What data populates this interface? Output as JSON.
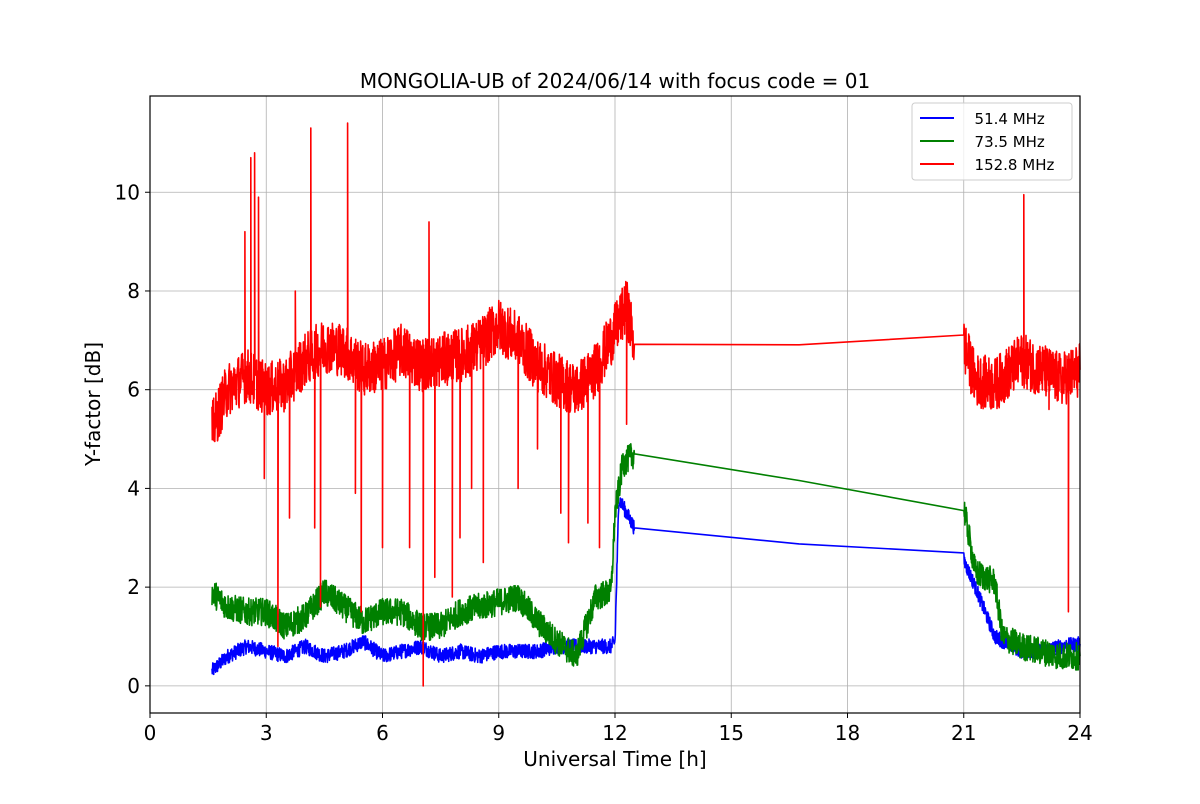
{
  "chart_data": {
    "type": "line",
    "title": "MONGOLIA-UB of 2024/06/14 with focus code = 01",
    "xlabel": "Universal Time [h]",
    "ylabel": "Y-factor [dB]",
    "xlim": [
      0,
      24
    ],
    "ylim": [
      -0.55,
      11.95
    ],
    "xticks": [
      0,
      3,
      6,
      9,
      12,
      15,
      18,
      21,
      24
    ],
    "yticks": [
      0,
      2,
      4,
      6,
      8,
      10
    ],
    "grid": true,
    "legend_position": "top-right",
    "series": [
      {
        "name": "  51.4 MHz",
        "color": "#0000ff",
        "noise": 0.15,
        "x": [
          1.6,
          2.0,
          2.5,
          3.0,
          3.5,
          4.0,
          4.5,
          5.0,
          5.5,
          6.0,
          6.5,
          7.0,
          7.5,
          8.0,
          8.5,
          9.0,
          9.5,
          10.0,
          10.5,
          11.0,
          11.5,
          11.9,
          12.0,
          12.1,
          12.5,
          21.0,
          21.3,
          21.8,
          22.5,
          23.0,
          23.5,
          24.0
        ],
        "y": [
          0.3,
          0.6,
          0.8,
          0.7,
          0.6,
          0.8,
          0.6,
          0.7,
          0.9,
          0.6,
          0.7,
          0.8,
          0.6,
          0.7,
          0.6,
          0.7,
          0.7,
          0.7,
          0.8,
          0.8,
          0.8,
          0.8,
          0.9,
          3.8,
          3.2,
          2.55,
          2.0,
          1.0,
          0.7,
          0.7,
          0.8,
          0.85
        ]
      },
      {
        "name": "  73.5 MHz",
        "color": "#008000",
        "noise": 0.28,
        "x": [
          1.6,
          2.0,
          2.5,
          3.0,
          3.5,
          4.0,
          4.5,
          5.0,
          5.5,
          6.0,
          6.5,
          7.0,
          7.5,
          8.0,
          8.5,
          9.0,
          9.5,
          10.0,
          10.5,
          11.0,
          11.5,
          11.9,
          12.0,
          12.2,
          12.5,
          21.0,
          21.3,
          21.8,
          22.0,
          22.5,
          23.0,
          23.5,
          24.0
        ],
        "y": [
          1.9,
          1.6,
          1.5,
          1.5,
          1.2,
          1.4,
          1.9,
          1.6,
          1.3,
          1.5,
          1.5,
          1.2,
          1.2,
          1.5,
          1.6,
          1.7,
          1.8,
          1.3,
          0.9,
          0.6,
          1.8,
          1.9,
          3.5,
          4.5,
          4.7,
          3.62,
          2.3,
          2.1,
          1.0,
          0.8,
          0.7,
          0.6,
          0.6
        ]
      },
      {
        "name": "  152.8 MHz",
        "color": "#ff0000",
        "noise": 0.55,
        "x": [
          1.6,
          2.0,
          2.5,
          3.0,
          3.5,
          4.0,
          4.5,
          5.0,
          5.5,
          6.0,
          6.5,
          7.0,
          7.5,
          8.0,
          8.5,
          9.0,
          9.5,
          10.0,
          10.5,
          11.0,
          11.5,
          12.0,
          12.3,
          12.5,
          21.0,
          21.3,
          21.8,
          22.5,
          23.0,
          23.5,
          24.0
        ],
        "y": [
          5.2,
          6.0,
          6.3,
          6.0,
          6.1,
          6.6,
          6.9,
          6.8,
          6.4,
          6.5,
          6.8,
          6.5,
          6.6,
          6.7,
          6.9,
          7.3,
          7.0,
          6.5,
          6.2,
          6.0,
          6.4,
          7.2,
          7.7,
          6.92,
          6.9,
          6.2,
          6.1,
          6.6,
          6.4,
          6.2,
          6.4
        ]
      }
    ],
    "spikes": [
      {
        "series": 2,
        "x": 2.45,
        "y": 9.2
      },
      {
        "series": 2,
        "x": 2.6,
        "y": 10.7
      },
      {
        "series": 2,
        "x": 2.7,
        "y": 10.8
      },
      {
        "series": 2,
        "x": 2.8,
        "y": 9.9
      },
      {
        "series": 2,
        "x": 2.95,
        "y": 4.2
      },
      {
        "series": 2,
        "x": 3.3,
        "y": 0.8
      },
      {
        "series": 2,
        "x": 3.6,
        "y": 3.4
      },
      {
        "series": 2,
        "x": 3.75,
        "y": 8.0
      },
      {
        "series": 2,
        "x": 4.15,
        "y": 11.3
      },
      {
        "series": 2,
        "x": 4.25,
        "y": 3.2
      },
      {
        "series": 2,
        "x": 4.4,
        "y": 1.6
      },
      {
        "series": 2,
        "x": 5.1,
        "y": 11.4
      },
      {
        "series": 2,
        "x": 5.3,
        "y": 3.9
      },
      {
        "series": 2,
        "x": 5.45,
        "y": 1.5
      },
      {
        "series": 2,
        "x": 6.0,
        "y": 2.8
      },
      {
        "series": 2,
        "x": 6.7,
        "y": 2.8
      },
      {
        "series": 2,
        "x": 7.05,
        "y": 0.0
      },
      {
        "series": 2,
        "x": 7.2,
        "y": 9.4
      },
      {
        "series": 2,
        "x": 7.35,
        "y": 2.2
      },
      {
        "series": 2,
        "x": 7.8,
        "y": 1.8
      },
      {
        "series": 2,
        "x": 8.0,
        "y": 3.0
      },
      {
        "series": 2,
        "x": 8.3,
        "y": 4.0
      },
      {
        "series": 2,
        "x": 8.6,
        "y": 2.5
      },
      {
        "series": 2,
        "x": 9.5,
        "y": 4.0
      },
      {
        "series": 2,
        "x": 10.0,
        "y": 4.8
      },
      {
        "series": 2,
        "x": 10.6,
        "y": 3.5
      },
      {
        "series": 2,
        "x": 10.8,
        "y": 2.9
      },
      {
        "series": 2,
        "x": 11.3,
        "y": 3.3
      },
      {
        "series": 2,
        "x": 11.6,
        "y": 2.8
      },
      {
        "series": 2,
        "x": 12.3,
        "y": 5.3
      },
      {
        "series": 2,
        "x": 22.55,
        "y": 9.95
      },
      {
        "series": 2,
        "x": 23.2,
        "y": 5.6
      },
      {
        "series": 2,
        "x": 23.7,
        "y": 1.5
      }
    ]
  }
}
